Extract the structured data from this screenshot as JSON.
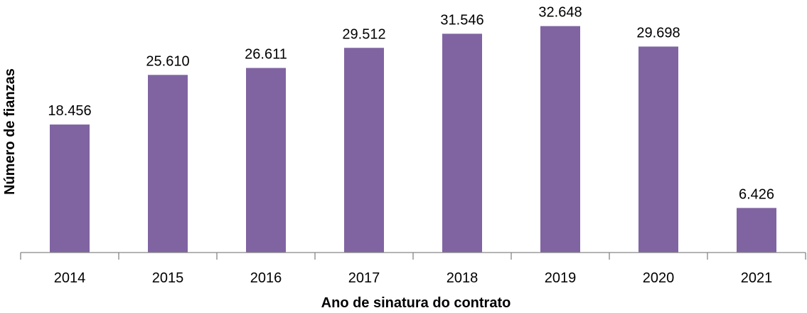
{
  "chart_data": {
    "type": "bar",
    "title": "",
    "xlabel": "Ano de sinatura do contrato",
    "ylabel": "Número de  fianzas",
    "categories": [
      "2014",
      "2015",
      "2016",
      "2017",
      "2018",
      "2019",
      "2020",
      "2021"
    ],
    "values": [
      18456,
      25610,
      26611,
      29512,
      31546,
      32648,
      29698,
      6426
    ],
    "data_labels": [
      "18.456",
      "25.610",
      "26.611",
      "29.512",
      "31.546",
      "32.648",
      "29.698",
      "6.426"
    ],
    "ylim": [
      0,
      36000
    ],
    "grid": false,
    "legend": "none",
    "colors": {
      "bar": "#8064A2",
      "axis": "#868686"
    }
  }
}
